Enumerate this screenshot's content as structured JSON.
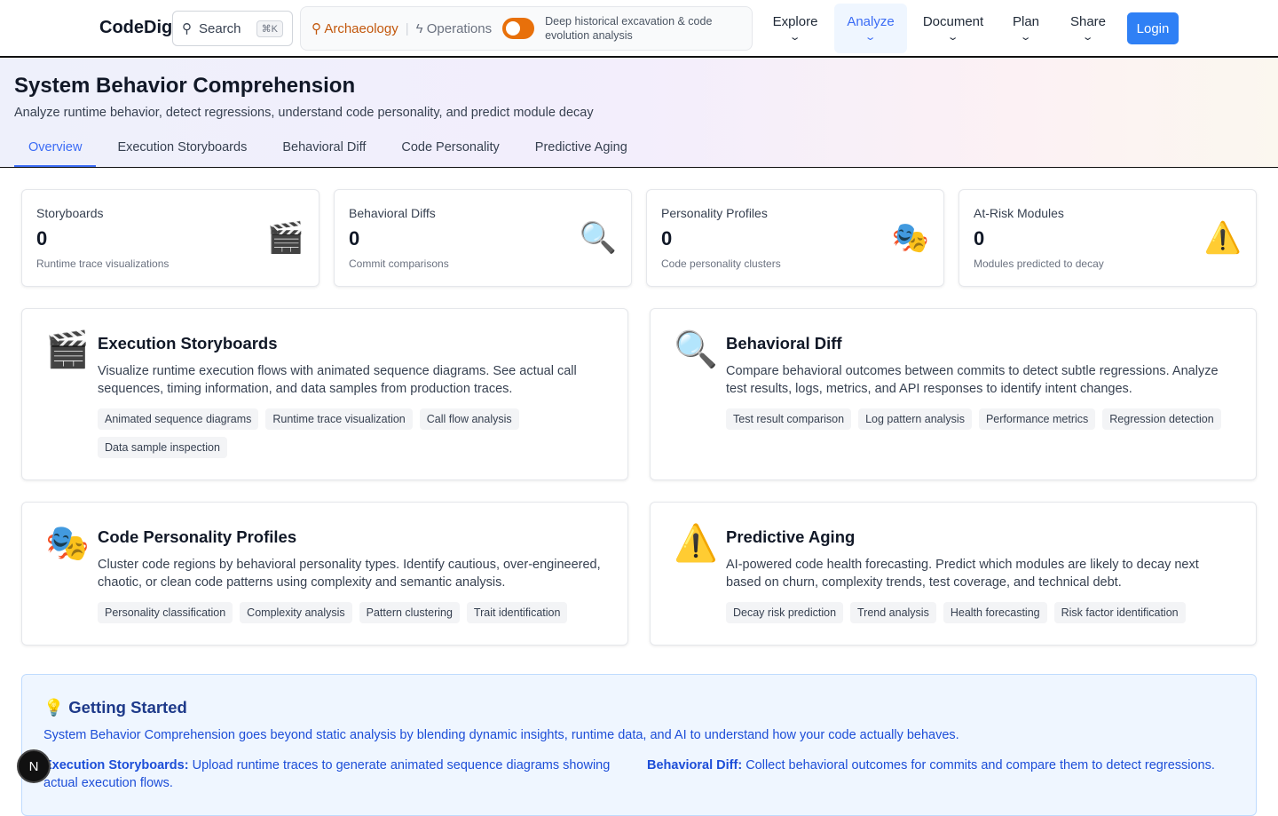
{
  "header": {
    "logo": "CodeDig",
    "search": "Search",
    "shortcut": "⌘K",
    "mode_archaeology": "Archaeology",
    "mode_operations": "Operations",
    "mode_description": "Deep historical excavation & code evolution analysis",
    "nav": [
      "Explore",
      "Analyze",
      "Document",
      "Plan",
      "Share"
    ],
    "active_nav": "Analyze",
    "login": "Login"
  },
  "page": {
    "title": "System Behavior Comprehension",
    "subtitle": "Analyze runtime behavior, detect regressions, understand code personality, and predict module decay",
    "tabs": [
      "Overview",
      "Execution Storyboards",
      "Behavioral Diff",
      "Code Personality",
      "Predictive Aging"
    ],
    "active_tab": "Overview"
  },
  "stats": [
    {
      "label": "Storyboards",
      "value": "0",
      "sub": "Runtime trace visualizations",
      "icon": "🎬"
    },
    {
      "label": "Behavioral Diffs",
      "value": "0",
      "sub": "Commit comparisons",
      "icon": "🔍"
    },
    {
      "label": "Personality Profiles",
      "value": "0",
      "sub": "Code personality clusters",
      "icon": "🎭"
    },
    {
      "label": "At-Risk Modules",
      "value": "0",
      "sub": "Modules predicted to decay",
      "icon": "⚠️"
    }
  ],
  "features": [
    {
      "title": "Execution Storyboards",
      "icon": "🎬",
      "desc": "Visualize runtime execution flows with animated sequence diagrams. See actual call sequences, timing information, and data samples from production traces.",
      "tags": [
        "Animated sequence diagrams",
        "Runtime trace visualization",
        "Call flow analysis",
        "Data sample inspection"
      ]
    },
    {
      "title": "Behavioral Diff",
      "icon": "🔍",
      "desc": "Compare behavioral outcomes between commits to detect subtle regressions. Analyze test results, logs, metrics, and API responses to identify intent changes.",
      "tags": [
        "Test result comparison",
        "Log pattern analysis",
        "Performance metrics",
        "Regression detection"
      ]
    },
    {
      "title": "Code Personality Profiles",
      "icon": "🎭",
      "desc": "Cluster code regions by behavioral personality types. Identify cautious, over-engineered, chaotic, or clean code patterns using complexity and semantic analysis.",
      "tags": [
        "Personality classification",
        "Complexity analysis",
        "Pattern clustering",
        "Trait identification"
      ]
    },
    {
      "title": "Predictive Aging",
      "icon": "⚠️",
      "desc": "AI-powered code health forecasting. Predict which modules are likely to decay next based on churn, complexity trends, test coverage, and technical debt.",
      "tags": [
        "Decay risk prediction",
        "Trend analysis",
        "Health forecasting",
        "Risk factor identification"
      ]
    }
  ],
  "getting_started": {
    "icon": "💡",
    "title": "Getting Started",
    "intro": "System Behavior Comprehension goes beyond static analysis by blending dynamic insights, runtime data, and AI to understand how your code actually behaves.",
    "items": [
      {
        "label": "Execution Storyboards:",
        "text": " Upload runtime traces to generate animated sequence diagrams showing actual execution flows."
      },
      {
        "label": "Behavioral Diff:",
        "text": " Collect behavioral outcomes for commits and compare them to detect regressions."
      }
    ]
  },
  "floating_button": "N"
}
